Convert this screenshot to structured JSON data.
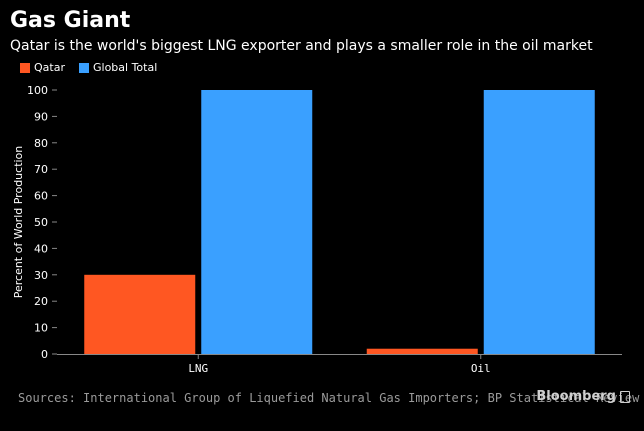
{
  "chart_data": {
    "type": "bar",
    "title": "Gas Giant",
    "subtitle": "Qatar is the world's biggest LNG exporter and plays a smaller role in the oil market",
    "categories": [
      "LNG",
      "Oil"
    ],
    "series": [
      {
        "name": "Qatar",
        "color": "#ff5722",
        "values": [
          30,
          2
        ]
      },
      {
        "name": "Global Total",
        "color": "#3aa0ff",
        "values": [
          100,
          100
        ]
      }
    ],
    "ylabel": "Percent of World Production",
    "xlabel": "",
    "ylim": [
      0,
      100
    ],
    "yticks": [
      0,
      10,
      20,
      30,
      40,
      50,
      60,
      70,
      80,
      90,
      100
    ],
    "grid": false,
    "legend_position": "top-left"
  },
  "footer": {
    "source": "Sources: International Group of Liquefied Natural Gas Importers; BP Statistical Review",
    "brand": "Bloomberg"
  }
}
